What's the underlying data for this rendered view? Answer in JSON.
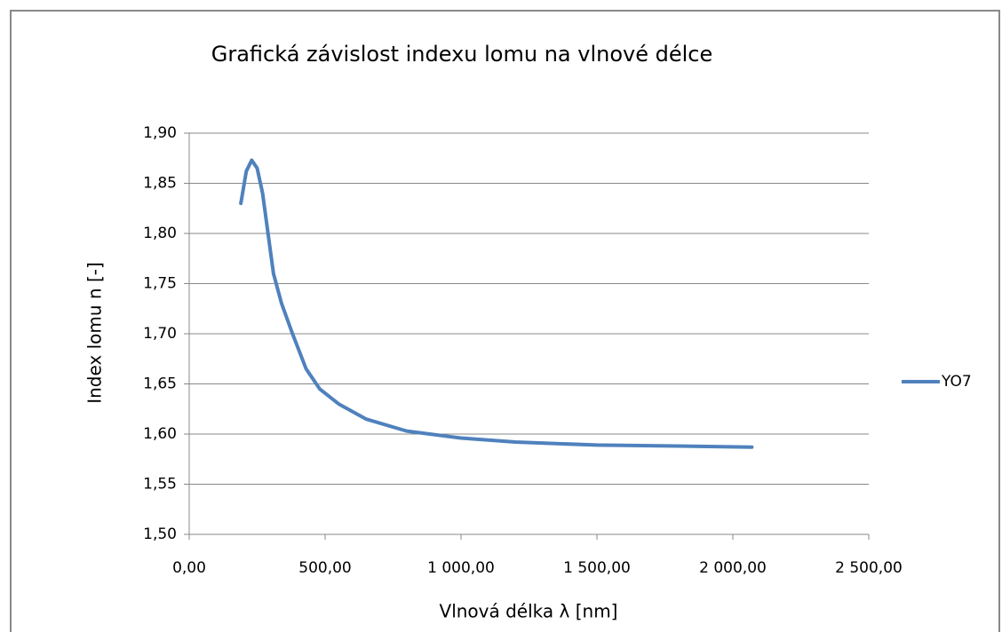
{
  "chart_data": {
    "type": "line",
    "title": "Grafická závislost indexu lomu na vlnové délce",
    "x_label": "Vlnová délka  λ [nm]",
    "y_label": "Index lomu n [-]",
    "xlim": [
      0,
      2500
    ],
    "ylim": [
      1.5,
      1.9
    ],
    "xticks": [
      {
        "value": 0,
        "label": "0,00"
      },
      {
        "value": 500,
        "label": "500,00"
      },
      {
        "value": 1000,
        "label": "1 000,00"
      },
      {
        "value": 1500,
        "label": "1 500,00"
      },
      {
        "value": 2000,
        "label": "2 000,00"
      },
      {
        "value": 2500,
        "label": "2 500,00"
      }
    ],
    "yticks": [
      {
        "value": 1.5,
        "label": "1,50"
      },
      {
        "value": 1.55,
        "label": "1,55"
      },
      {
        "value": 1.6,
        "label": "1,60"
      },
      {
        "value": 1.65,
        "label": "1,65"
      },
      {
        "value": 1.7,
        "label": "1,70"
      },
      {
        "value": 1.75,
        "label": "1,75"
      },
      {
        "value": 1.8,
        "label": "1,80"
      },
      {
        "value": 1.85,
        "label": "1,85"
      },
      {
        "value": 1.9,
        "label": "1,90"
      }
    ],
    "grid": true,
    "legend": "right",
    "series": [
      {
        "name": "YO7",
        "color": "#4f81bd",
        "x": [
          190,
          210,
          230,
          250,
          270,
          290,
          310,
          340,
          380,
          430,
          480,
          550,
          650,
          800,
          1000,
          1200,
          1500,
          1800,
          2070
        ],
        "values": [
          1.83,
          1.862,
          1.873,
          1.865,
          1.84,
          1.8,
          1.76,
          1.73,
          1.7,
          1.665,
          1.645,
          1.63,
          1.615,
          1.603,
          1.596,
          1.592,
          1.589,
          1.588,
          1.587
        ]
      }
    ]
  }
}
